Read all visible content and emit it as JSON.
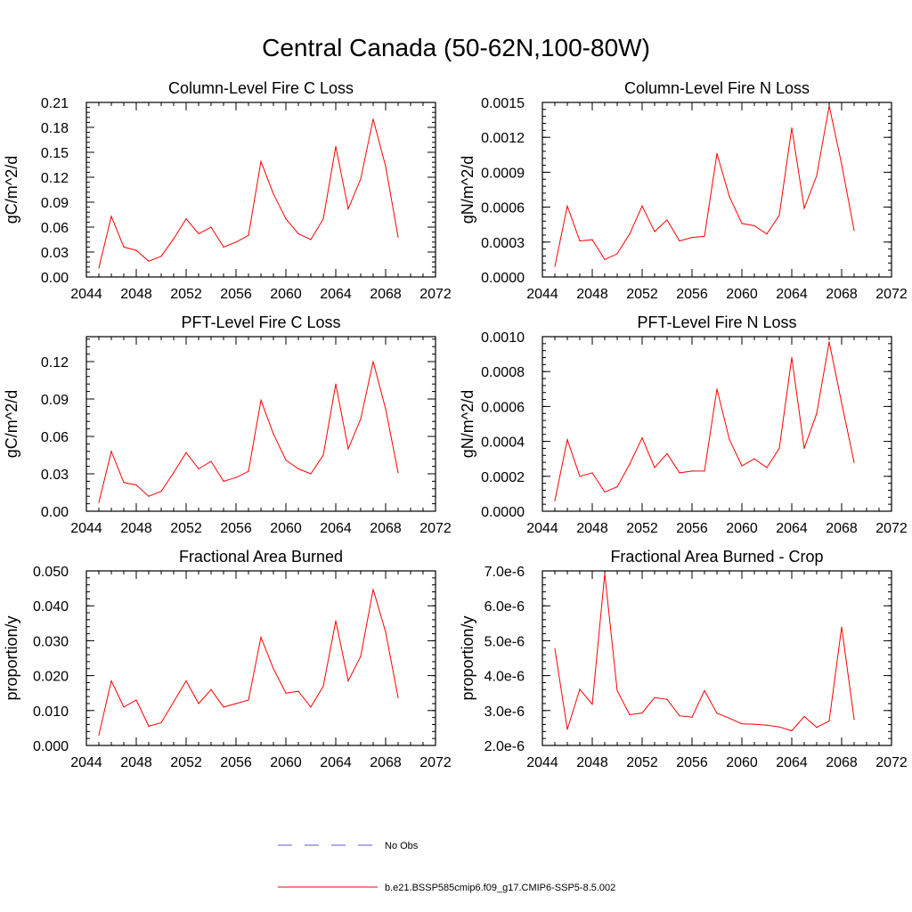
{
  "figure_title": "Central Canada (50-62N,100-80W)",
  "colors": {
    "model_line": "#ff0000",
    "obs_line": "#5a5ad6",
    "axis": "#000000"
  },
  "legend": {
    "placement": "bottom-center",
    "entries": [
      {
        "label": "No Obs",
        "style": "dashed",
        "color": "#5a5ad6"
      },
      {
        "label": "b.e21.BSSP585cmip6.f09_g17.CMIP6-SSP5-8.5.002",
        "style": "solid",
        "color": "#ff0000"
      }
    ]
  },
  "chart_data": [
    {
      "type": "line",
      "title": "Column-Level Fire C Loss",
      "ylabel": "gC/m^2/d",
      "xlim": [
        2044,
        2072
      ],
      "xticks": [
        "2044",
        "2048",
        "2052",
        "2056",
        "2060",
        "2064",
        "2068",
        "2072"
      ],
      "ylim": [
        0,
        0.21
      ],
      "yticks": [
        "0.00",
        "0.03",
        "0.06",
        "0.09",
        "0.12",
        "0.15",
        "0.18",
        "0.21"
      ],
      "x": [
        2045,
        2046,
        2047,
        2048,
        2049,
        2050,
        2051,
        2052,
        2053,
        2054,
        2055,
        2056,
        2057,
        2058,
        2059,
        2060,
        2061,
        2062,
        2063,
        2064,
        2065,
        2066,
        2067,
        2068,
        2069
      ],
      "series": [
        {
          "values": [
            0.011,
            0.073,
            0.036,
            0.032,
            0.019,
            0.025,
            0.046,
            0.07,
            0.052,
            0.06,
            0.036,
            0.042,
            0.05,
            0.139,
            0.1,
            0.07,
            0.052,
            0.045,
            0.07,
            0.157,
            0.082,
            0.118,
            0.19,
            0.133,
            0.048
          ]
        }
      ]
    },
    {
      "type": "line",
      "title": "Column-Level Fire N Loss",
      "ylabel": "gN/m^2/d",
      "xlim": [
        2044,
        2072
      ],
      "xticks": [
        "2044",
        "2048",
        "2052",
        "2056",
        "2060",
        "2064",
        "2068",
        "2072"
      ],
      "ylim": [
        0,
        0.0015
      ],
      "yticks": [
        "0.0000",
        "0.0003",
        "0.0006",
        "0.0009",
        "0.0012",
        "0.0015"
      ],
      "x": [
        2045,
        2046,
        2047,
        2048,
        2049,
        2050,
        2051,
        2052,
        2053,
        2054,
        2055,
        2056,
        2057,
        2058,
        2059,
        2060,
        2061,
        2062,
        2063,
        2064,
        2065,
        2066,
        2067,
        2068,
        2069
      ],
      "series": [
        {
          "values": [
            9e-05,
            0.00061,
            0.00031,
            0.00032,
            0.00015,
            0.0002,
            0.00037,
            0.00061,
            0.00039,
            0.00049,
            0.00031,
            0.00034,
            0.00035,
            0.00106,
            0.00069,
            0.00046,
            0.00044,
            0.00037,
            0.00053,
            0.00128,
            0.00059,
            0.00087,
            0.00147,
            0.00097,
            0.0004
          ]
        }
      ]
    },
    {
      "type": "line",
      "title": "PFT-Level Fire C Loss",
      "ylabel": "gC/m^2/d",
      "xlim": [
        2044,
        2072
      ],
      "xticks": [
        "2044",
        "2048",
        "2052",
        "2056",
        "2060",
        "2064",
        "2068",
        "2072"
      ],
      "ylim": [
        0,
        0.14
      ],
      "yticks": [
        "0.00",
        "0.03",
        "0.06",
        "0.09",
        "0.12"
      ],
      "x": [
        2045,
        2046,
        2047,
        2048,
        2049,
        2050,
        2051,
        2052,
        2053,
        2054,
        2055,
        2056,
        2057,
        2058,
        2059,
        2060,
        2061,
        2062,
        2063,
        2064,
        2065,
        2066,
        2067,
        2068,
        2069
      ],
      "series": [
        {
          "values": [
            0.007,
            0.048,
            0.023,
            0.021,
            0.012,
            0.016,
            0.031,
            0.047,
            0.034,
            0.04,
            0.024,
            0.027,
            0.032,
            0.089,
            0.062,
            0.041,
            0.034,
            0.03,
            0.045,
            0.102,
            0.05,
            0.074,
            0.12,
            0.082,
            0.031
          ]
        }
      ]
    },
    {
      "type": "line",
      "title": "PFT-Level Fire N Loss",
      "ylabel": "gN/m^2/d",
      "xlim": [
        2044,
        2072
      ],
      "xticks": [
        "2044",
        "2048",
        "2052",
        "2056",
        "2060",
        "2064",
        "2068",
        "2072"
      ],
      "ylim": [
        0,
        0.001
      ],
      "yticks": [
        "0.0000",
        "0.0002",
        "0.0004",
        "0.0006",
        "0.0008",
        "0.0010"
      ],
      "x": [
        2045,
        2046,
        2047,
        2048,
        2049,
        2050,
        2051,
        2052,
        2053,
        2054,
        2055,
        2056,
        2057,
        2058,
        2059,
        2060,
        2061,
        2062,
        2063,
        2064,
        2065,
        2066,
        2067,
        2068,
        2069
      ],
      "series": [
        {
          "values": [
            6e-05,
            0.00041,
            0.0002,
            0.00022,
            0.00011,
            0.00014,
            0.00027,
            0.00042,
            0.00025,
            0.00033,
            0.00022,
            0.00023,
            0.00023,
            0.0007,
            0.00041,
            0.00026,
            0.0003,
            0.00025,
            0.00036,
            0.00088,
            0.00036,
            0.00056,
            0.00097,
            0.00062,
            0.00028
          ]
        }
      ]
    },
    {
      "type": "line",
      "title": "Fractional Area Burned",
      "ylabel": "proportion/y",
      "xlim": [
        2044,
        2072
      ],
      "xticks": [
        "2044",
        "2048",
        "2052",
        "2056",
        "2060",
        "2064",
        "2068",
        "2072"
      ],
      "ylim": [
        0,
        0.05
      ],
      "yticks": [
        "0.000",
        "0.010",
        "0.020",
        "0.030",
        "0.040",
        "0.050"
      ],
      "x": [
        2045,
        2046,
        2047,
        2048,
        2049,
        2050,
        2051,
        2052,
        2053,
        2054,
        2055,
        2056,
        2057,
        2058,
        2059,
        2060,
        2061,
        2062,
        2063,
        2064,
        2065,
        2066,
        2067,
        2068,
        2069
      ],
      "series": [
        {
          "values": [
            0.003,
            0.0185,
            0.011,
            0.013,
            0.0055,
            0.0065,
            0.0125,
            0.0185,
            0.012,
            0.016,
            0.011,
            0.012,
            0.013,
            0.031,
            0.022,
            0.015,
            0.0155,
            0.011,
            0.017,
            0.0357,
            0.0185,
            0.0255,
            0.0447,
            0.0325,
            0.0137
          ]
        }
      ]
    },
    {
      "type": "line",
      "title": "Fractional Area Burned - Crop",
      "ylabel": "proportion/y",
      "xlim": [
        2044,
        2072
      ],
      "xticks": [
        "2044",
        "2048",
        "2052",
        "2056",
        "2060",
        "2064",
        "2068",
        "2072"
      ],
      "ylim": [
        2e-06,
        7e-06
      ],
      "yticks": [
        "2.0e-6",
        "3.0e-6",
        "4.0e-6",
        "5.0e-6",
        "6.0e-6",
        "7.0e-6"
      ],
      "x": [
        2045,
        2046,
        2047,
        2048,
        2049,
        2050,
        2051,
        2052,
        2053,
        2054,
        2055,
        2056,
        2057,
        2058,
        2059,
        2060,
        2061,
        2062,
        2063,
        2064,
        2065,
        2066,
        2067,
        2068,
        2069
      ],
      "series": [
        {
          "values": [
            4.77e-06,
            2.46e-06,
            3.61e-06,
            3.18e-06,
            6.92e-06,
            3.57e-06,
            2.88e-06,
            2.93e-06,
            3.37e-06,
            3.32e-06,
            2.85e-06,
            2.81e-06,
            3.57e-06,
            2.92e-06,
            2.78e-06,
            2.62e-06,
            2.61e-06,
            2.58e-06,
            2.53e-06,
            2.42e-06,
            2.83e-06,
            2.52e-06,
            2.7e-06,
            5.39e-06,
            2.75e-06
          ]
        }
      ]
    }
  ]
}
